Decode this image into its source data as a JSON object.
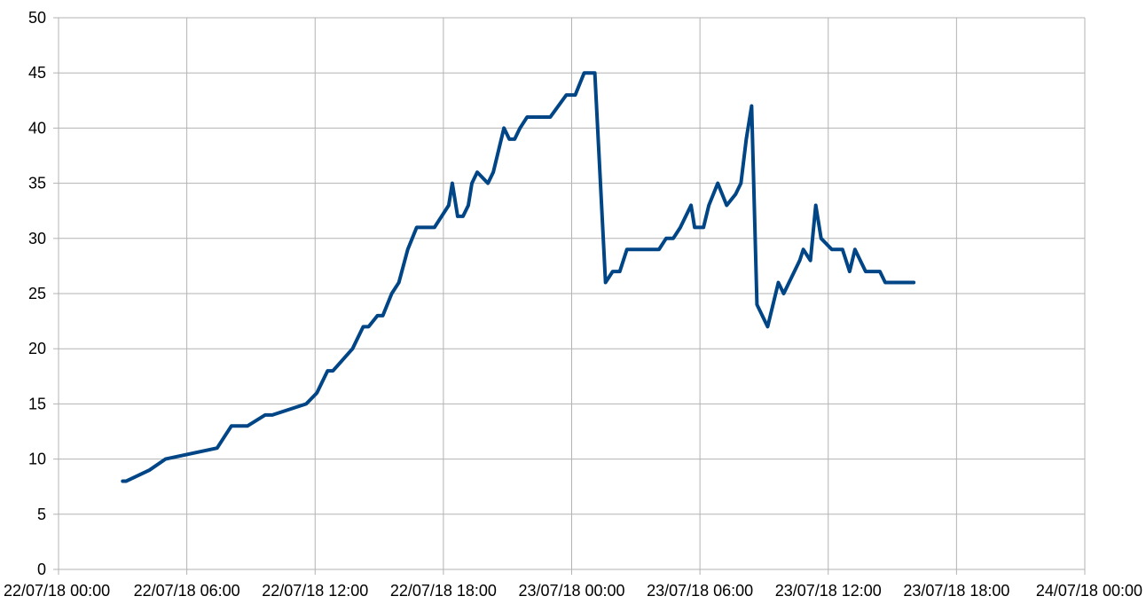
{
  "chart_data": {
    "type": "line",
    "title": "",
    "xlabel": "",
    "ylabel": "",
    "ylim": [
      0,
      50
    ],
    "xlim": [
      "22/07/18 00:00",
      "24/07/18 00:00"
    ],
    "y_ticks": [
      "0",
      "5",
      "10",
      "15",
      "20",
      "25",
      "30",
      "35",
      "40",
      "45",
      "50"
    ],
    "x_ticks": [
      "22/07/18 00:00",
      "22/07/18 06:00",
      "22/07/18 12:00",
      "22/07/18 18:00",
      "23/07/18 00:00",
      "23/07/18 06:00",
      "23/07/18 12:00",
      "23/07/18 18:00",
      "24/07/18 00:00"
    ],
    "grid": true,
    "legend": "none",
    "line_color": "#004586",
    "grid_color": "#b3b3b3",
    "series": [
      {
        "points": [
          [
            "22/07/18 03:00",
            8
          ],
          [
            "22/07/18 03:10",
            8
          ],
          [
            "22/07/18 04:15",
            9
          ],
          [
            "22/07/18 05:00",
            10
          ],
          [
            "22/07/18 07:25",
            11
          ],
          [
            "22/07/18 07:45",
            12
          ],
          [
            "22/07/18 08:05",
            13
          ],
          [
            "22/07/18 08:50",
            13
          ],
          [
            "22/07/18 09:40",
            14
          ],
          [
            "22/07/18 10:00",
            14
          ],
          [
            "22/07/18 11:35",
            15
          ],
          [
            "22/07/18 12:05",
            16
          ],
          [
            "22/07/18 12:35",
            18
          ],
          [
            "22/07/18 12:50",
            18
          ],
          [
            "22/07/18 13:45",
            20
          ],
          [
            "22/07/18 14:15",
            22
          ],
          [
            "22/07/18 14:30",
            22
          ],
          [
            "22/07/18 14:55",
            23
          ],
          [
            "22/07/18 15:10",
            23
          ],
          [
            "22/07/18 15:35",
            25
          ],
          [
            "22/07/18 15:55",
            26
          ],
          [
            "22/07/18 16:20",
            29
          ],
          [
            "22/07/18 16:45",
            31
          ],
          [
            "22/07/18 17:35",
            31
          ],
          [
            "22/07/18 18:15",
            33
          ],
          [
            "22/07/18 18:25",
            35
          ],
          [
            "22/07/18 18:40",
            32
          ],
          [
            "22/07/18 18:55",
            32
          ],
          [
            "22/07/18 19:10",
            33
          ],
          [
            "22/07/18 19:20",
            35
          ],
          [
            "22/07/18 19:35",
            36
          ],
          [
            "22/07/18 20:05",
            35
          ],
          [
            "22/07/18 20:20",
            36
          ],
          [
            "22/07/18 20:50",
            40
          ],
          [
            "22/07/18 21:05",
            39
          ],
          [
            "22/07/18 21:20",
            39
          ],
          [
            "22/07/18 21:35",
            40
          ],
          [
            "22/07/18 21:55",
            41
          ],
          [
            "22/07/18 23:00",
            41
          ],
          [
            "22/07/18 23:45",
            43
          ],
          [
            "23/07/18 00:10",
            43
          ],
          [
            "23/07/18 00:35",
            45
          ],
          [
            "23/07/18 01:05",
            45
          ],
          [
            "23/07/18 01:35",
            26
          ],
          [
            "23/07/18 01:55",
            27
          ],
          [
            "23/07/18 02:15",
            27
          ],
          [
            "23/07/18 02:35",
            29
          ],
          [
            "23/07/18 04:05",
            29
          ],
          [
            "23/07/18 04:25",
            30
          ],
          [
            "23/07/18 04:45",
            30
          ],
          [
            "23/07/18 05:05",
            31
          ],
          [
            "23/07/18 05:35",
            33
          ],
          [
            "23/07/18 05:45",
            31
          ],
          [
            "23/07/18 06:10",
            31
          ],
          [
            "23/07/18 06:25",
            33
          ],
          [
            "23/07/18 06:50",
            35
          ],
          [
            "23/07/18 07:15",
            33
          ],
          [
            "23/07/18 07:40",
            34
          ],
          [
            "23/07/18 07:55",
            35
          ],
          [
            "23/07/18 08:10",
            39
          ],
          [
            "23/07/18 08:25",
            42
          ],
          [
            "23/07/18 08:40",
            24
          ],
          [
            "23/07/18 09:10",
            22
          ],
          [
            "23/07/18 09:40",
            26
          ],
          [
            "23/07/18 09:55",
            25
          ],
          [
            "23/07/18 10:40",
            28
          ],
          [
            "23/07/18 10:50",
            29
          ],
          [
            "23/07/18 11:10",
            28
          ],
          [
            "23/07/18 11:25",
            33
          ],
          [
            "23/07/18 11:40",
            30
          ],
          [
            "23/07/18 12:10",
            29
          ],
          [
            "23/07/18 12:40",
            29
          ],
          [
            "23/07/18 13:00",
            27
          ],
          [
            "23/07/18 13:15",
            29
          ],
          [
            "23/07/18 13:45",
            27
          ],
          [
            "23/07/18 14:25",
            27
          ],
          [
            "23/07/18 14:40",
            26
          ],
          [
            "23/07/18 16:00",
            26
          ]
        ]
      }
    ]
  }
}
